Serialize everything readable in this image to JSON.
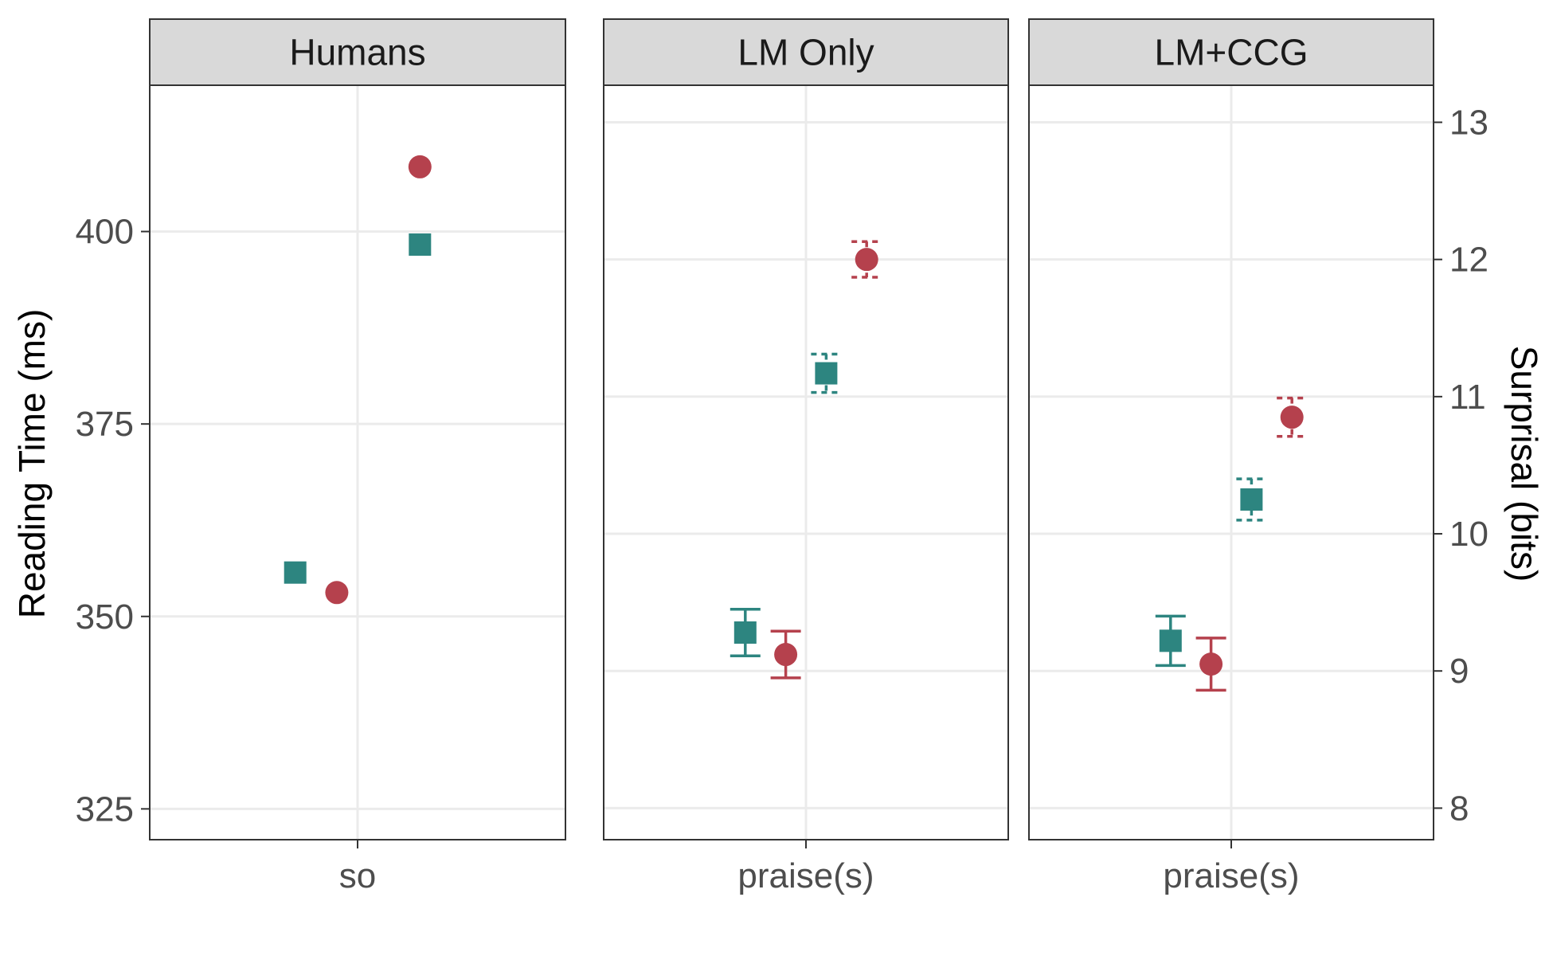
{
  "chart_data": {
    "type": "scatter",
    "facets": [
      {
        "label": "Humans",
        "category": "so",
        "axis": "left",
        "points": [
          {
            "x_offset": -0.3,
            "value": 355.7,
            "shape": "square",
            "color": "#2d8580"
          },
          {
            "x_offset": 0.3,
            "value": 398.3,
            "shape": "square",
            "color": "#2d8580"
          },
          {
            "x_offset": -0.1,
            "value": 353.1,
            "shape": "circle",
            "color": "#b5414d"
          },
          {
            "x_offset": 0.3,
            "value": 408.4,
            "shape": "circle",
            "color": "#b5414d"
          }
        ]
      },
      {
        "label": "LM Only",
        "category": "praise(s)",
        "axis": "right",
        "points": [
          {
            "x_offset": -0.3,
            "value": 9.28,
            "err": 0.17,
            "dashed": false,
            "shape": "square",
            "color": "#2d8580"
          },
          {
            "x_offset": 0.1,
            "value": 11.17,
            "err": 0.14,
            "dashed": true,
            "shape": "square",
            "color": "#2d8580"
          },
          {
            "x_offset": -0.1,
            "value": 9.12,
            "err": 0.17,
            "dashed": false,
            "shape": "circle",
            "color": "#b5414d"
          },
          {
            "x_offset": 0.3,
            "value": 12.0,
            "err": 0.13,
            "dashed": true,
            "shape": "circle",
            "color": "#b5414d"
          }
        ]
      },
      {
        "label": "LM+CCG",
        "category": "praise(s)",
        "axis": "right",
        "points": [
          {
            "x_offset": -0.3,
            "value": 9.22,
            "err": 0.18,
            "dashed": false,
            "shape": "square",
            "color": "#2d8580"
          },
          {
            "x_offset": 0.1,
            "value": 10.25,
            "err": 0.15,
            "dashed": true,
            "shape": "square",
            "color": "#2d8580"
          },
          {
            "x_offset": -0.1,
            "value": 9.05,
            "err": 0.19,
            "dashed": false,
            "shape": "circle",
            "color": "#b5414d"
          },
          {
            "x_offset": 0.3,
            "value": 10.85,
            "err": 0.14,
            "dashed": true,
            "shape": "circle",
            "color": "#b5414d"
          }
        ]
      }
    ],
    "y_left": {
      "label": "Reading Time (ms)",
      "ticks": [
        325,
        350,
        375,
        400
      ],
      "range": [
        321,
        419
      ]
    },
    "y_right": {
      "label": "Surprisal (bits)",
      "ticks": [
        8,
        9,
        10,
        11,
        12,
        13
      ],
      "range": [
        7.77,
        13.27
      ]
    },
    "x_range": [
      -1,
      1
    ],
    "grid": true,
    "legend": "none"
  }
}
